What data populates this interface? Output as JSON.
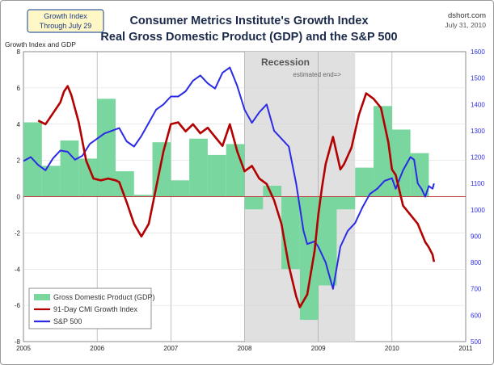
{
  "badge": {
    "line1": "Growth Index",
    "line2": "Through July 29"
  },
  "source": {
    "site": "dshort.com",
    "date": "July 31, 2010"
  },
  "title_line1": "Consumer Metrics Institute's Growth Index",
  "title_line2": "Real Gross Domestic Product (GDP) and the S&P 500",
  "recession_label": "Recession",
  "recession_note": "estimated end=>",
  "colors": {
    "gdp_bars": "#79d69e",
    "cmi_line": "#b30000",
    "sp500_line": "#2b2be6",
    "recession_band": "#e0e0e0",
    "zero_line": "#c04040"
  },
  "chart_data": {
    "type": "bar",
    "ylabel": "Growth Index and GDP",
    "ylim": [
      -8,
      8
    ],
    "y_ticks": [
      "8",
      "6",
      "4",
      "2",
      "0",
      "-2",
      "-4",
      "-6",
      "-8"
    ],
    "y2_ticks": [
      "1600",
      "1500",
      "1400",
      "1300",
      "1200",
      "1100",
      "1000",
      "900",
      "800",
      "700",
      "600",
      "500"
    ],
    "y2lim": [
      500,
      1600
    ],
    "x_ticks": [
      "2005",
      "2006",
      "2007",
      "2008",
      "2009",
      "2010",
      "2011"
    ],
    "xlim": [
      2005.0,
      2011.0
    ],
    "recession": [
      2008.0,
      2009.5
    ],
    "legend": {
      "placement": "bottom-left",
      "entries": [
        "Gross Domestic Product (GDP)",
        "91-Day CMI Growth Index",
        "S&P 500"
      ]
    },
    "series": [
      {
        "name": "Gross Domestic Product (GDP)",
        "kind": "bar",
        "points": [
          [
            2005.0,
            4.1
          ],
          [
            2005.25,
            1.7
          ],
          [
            2005.5,
            3.1
          ],
          [
            2005.75,
            2.1
          ],
          [
            2006.0,
            5.4
          ],
          [
            2006.25,
            1.4
          ],
          [
            2006.5,
            0.1
          ],
          [
            2006.75,
            3.0
          ],
          [
            2007.0,
            0.9
          ],
          [
            2007.25,
            3.2
          ],
          [
            2007.5,
            2.3
          ],
          [
            2007.75,
            2.9
          ],
          [
            2008.0,
            -0.7
          ],
          [
            2008.25,
            0.6
          ],
          [
            2008.5,
            -4.0
          ],
          [
            2008.75,
            -6.8
          ],
          [
            2009.0,
            -4.9
          ],
          [
            2009.25,
            -0.7
          ],
          [
            2009.5,
            1.6
          ],
          [
            2009.75,
            5.0
          ],
          [
            2010.0,
            3.7
          ],
          [
            2010.25,
            2.4
          ]
        ]
      },
      {
        "name": "91-Day CMI Growth Index",
        "kind": "line",
        "points": [
          [
            2005.2,
            4.2
          ],
          [
            2005.3,
            4.0
          ],
          [
            2005.4,
            4.6
          ],
          [
            2005.5,
            5.2
          ],
          [
            2005.55,
            5.8
          ],
          [
            2005.6,
            6.1
          ],
          [
            2005.65,
            5.6
          ],
          [
            2005.75,
            4.1
          ],
          [
            2005.85,
            2.0
          ],
          [
            2005.95,
            1.0
          ],
          [
            2006.05,
            0.9
          ],
          [
            2006.15,
            1.0
          ],
          [
            2006.25,
            0.9
          ],
          [
            2006.3,
            0.8
          ],
          [
            2006.4,
            -0.3
          ],
          [
            2006.5,
            -1.5
          ],
          [
            2006.6,
            -2.2
          ],
          [
            2006.7,
            -1.5
          ],
          [
            2006.8,
            0.5
          ],
          [
            2006.9,
            2.5
          ],
          [
            2007.0,
            4.0
          ],
          [
            2007.1,
            4.1
          ],
          [
            2007.2,
            3.6
          ],
          [
            2007.3,
            4.0
          ],
          [
            2007.4,
            3.5
          ],
          [
            2007.5,
            3.8
          ],
          [
            2007.6,
            3.3
          ],
          [
            2007.7,
            2.8
          ],
          [
            2007.8,
            4.0
          ],
          [
            2007.9,
            2.5
          ],
          [
            2008.0,
            1.4
          ],
          [
            2008.1,
            1.7
          ],
          [
            2008.2,
            1.0
          ],
          [
            2008.3,
            0.7
          ],
          [
            2008.4,
            -0.2
          ],
          [
            2008.5,
            -1.5
          ],
          [
            2008.6,
            -3.8
          ],
          [
            2008.7,
            -5.5
          ],
          [
            2008.75,
            -6.1
          ],
          [
            2008.85,
            -5.4
          ],
          [
            2008.95,
            -3.0
          ],
          [
            2009.0,
            -1.0
          ],
          [
            2009.05,
            0.5
          ],
          [
            2009.1,
            1.8
          ],
          [
            2009.2,
            3.3
          ],
          [
            2009.3,
            1.5
          ],
          [
            2009.35,
            1.8
          ],
          [
            2009.45,
            2.7
          ],
          [
            2009.55,
            4.5
          ],
          [
            2009.65,
            5.7
          ],
          [
            2009.75,
            5.4
          ],
          [
            2009.85,
            4.9
          ],
          [
            2009.95,
            3.0
          ],
          [
            2010.0,
            1.5
          ],
          [
            2010.05,
            1.2
          ],
          [
            2010.15,
            -0.5
          ],
          [
            2010.25,
            -1.0
          ],
          [
            2010.35,
            -1.5
          ],
          [
            2010.45,
            -2.5
          ],
          [
            2010.5,
            -2.8
          ],
          [
            2010.55,
            -3.2
          ],
          [
            2010.57,
            -3.6
          ]
        ]
      },
      {
        "name": "S&P 500",
        "kind": "line",
        "axis": "right",
        "points": [
          [
            2005.0,
            1185
          ],
          [
            2005.1,
            1200
          ],
          [
            2005.2,
            1170
          ],
          [
            2005.3,
            1150
          ],
          [
            2005.4,
            1195
          ],
          [
            2005.5,
            1225
          ],
          [
            2005.6,
            1220
          ],
          [
            2005.7,
            1190
          ],
          [
            2005.8,
            1205
          ],
          [
            2005.9,
            1250
          ],
          [
            2006.0,
            1270
          ],
          [
            2006.1,
            1290
          ],
          [
            2006.2,
            1300
          ],
          [
            2006.3,
            1310
          ],
          [
            2006.4,
            1260
          ],
          [
            2006.5,
            1240
          ],
          [
            2006.6,
            1280
          ],
          [
            2006.7,
            1330
          ],
          [
            2006.8,
            1380
          ],
          [
            2006.9,
            1400
          ],
          [
            2007.0,
            1430
          ],
          [
            2007.1,
            1430
          ],
          [
            2007.2,
            1450
          ],
          [
            2007.3,
            1490
          ],
          [
            2007.4,
            1510
          ],
          [
            2007.5,
            1480
          ],
          [
            2007.6,
            1460
          ],
          [
            2007.7,
            1520
          ],
          [
            2007.8,
            1540
          ],
          [
            2007.9,
            1470
          ],
          [
            2008.0,
            1380
          ],
          [
            2008.1,
            1330
          ],
          [
            2008.2,
            1370
          ],
          [
            2008.3,
            1400
          ],
          [
            2008.4,
            1300
          ],
          [
            2008.5,
            1270
          ],
          [
            2008.6,
            1240
          ],
          [
            2008.7,
            1100
          ],
          [
            2008.8,
            920
          ],
          [
            2008.85,
            870
          ],
          [
            2008.95,
            880
          ],
          [
            2009.0,
            860
          ],
          [
            2009.1,
            800
          ],
          [
            2009.2,
            700
          ],
          [
            2009.3,
            860
          ],
          [
            2009.4,
            920
          ],
          [
            2009.5,
            950
          ],
          [
            2009.6,
            1010
          ],
          [
            2009.7,
            1060
          ],
          [
            2009.8,
            1080
          ],
          [
            2009.9,
            1110
          ],
          [
            2010.0,
            1120
          ],
          [
            2010.05,
            1080
          ],
          [
            2010.15,
            1150
          ],
          [
            2010.25,
            1200
          ],
          [
            2010.3,
            1190
          ],
          [
            2010.35,
            1100
          ],
          [
            2010.4,
            1080
          ],
          [
            2010.45,
            1050
          ],
          [
            2010.5,
            1090
          ],
          [
            2010.55,
            1080
          ],
          [
            2010.57,
            1100
          ]
        ]
      }
    ]
  }
}
